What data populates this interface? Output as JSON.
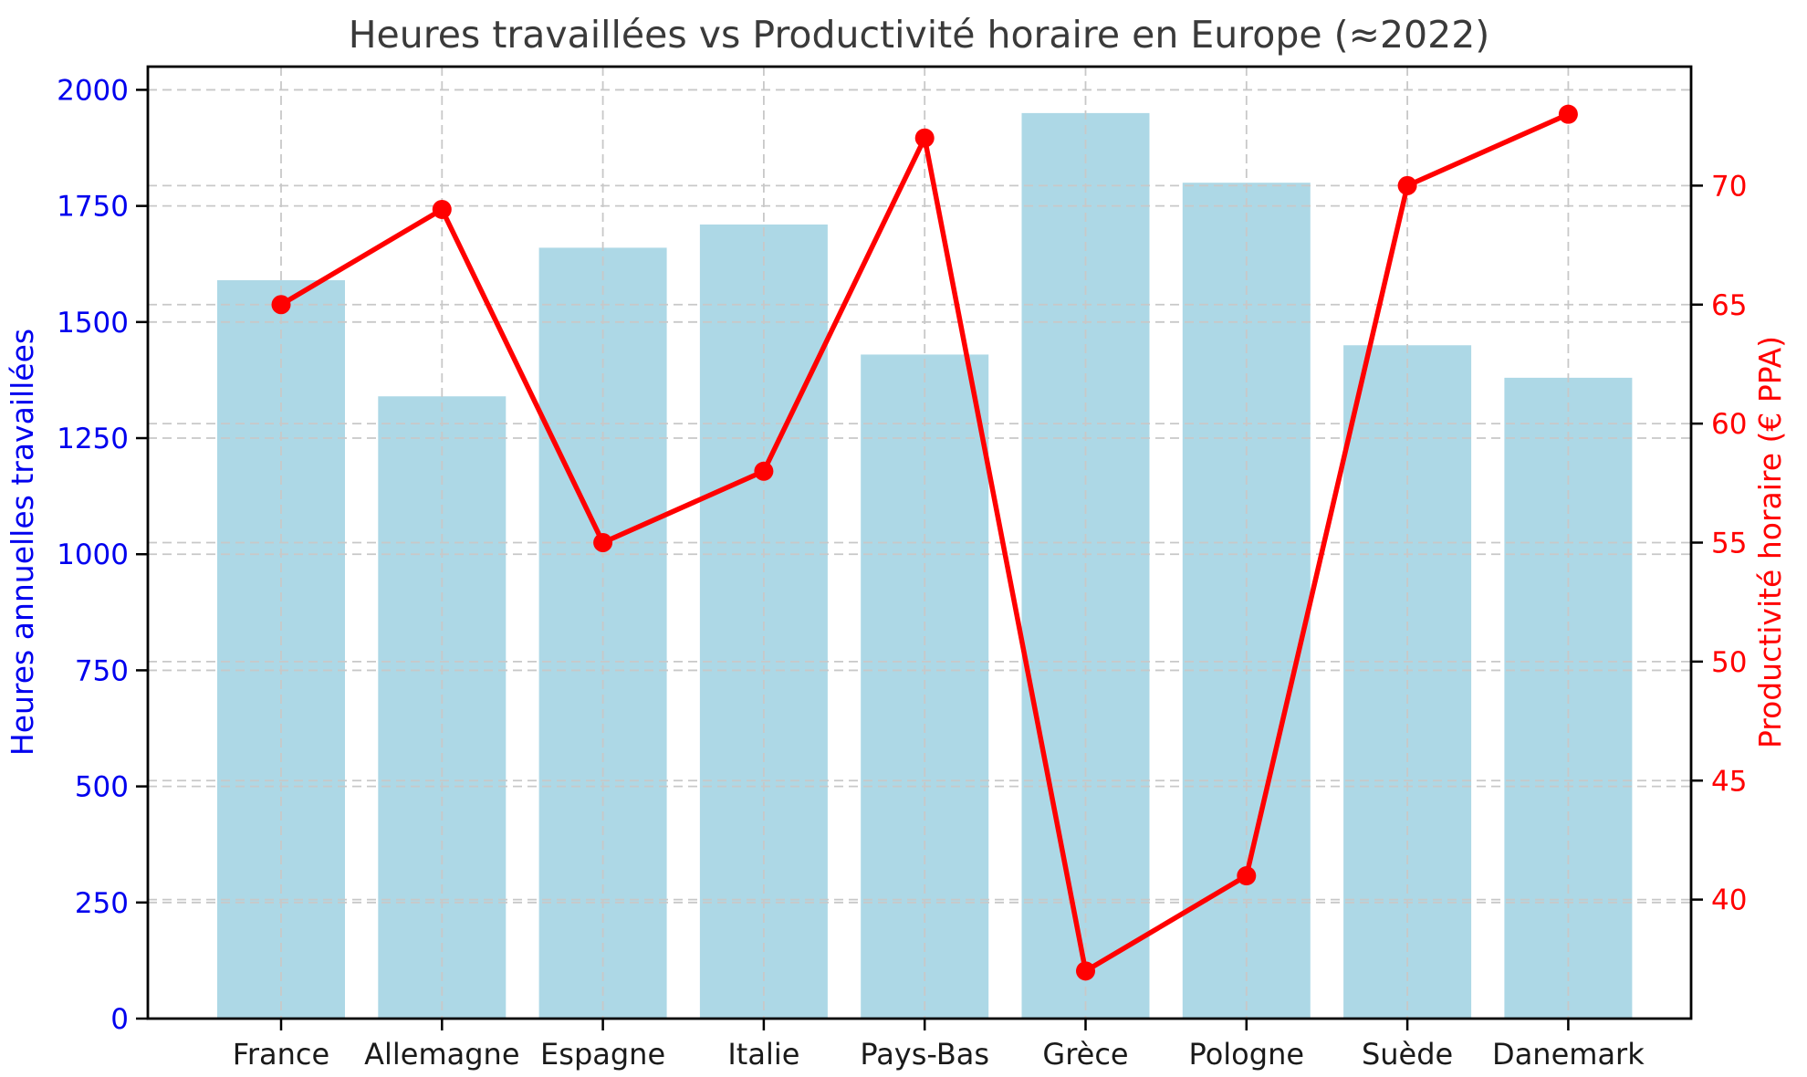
{
  "title": "Heures travaillées vs Productivité horaire en Europe (≈2022)",
  "chart_data": {
    "type": "combo",
    "categories": [
      "France",
      "Allemagne",
      "Espagne",
      "Italie",
      "Pays-Bas",
      "Grèce",
      "Pologne",
      "Suède",
      "Danemark"
    ],
    "series": [
      {
        "name": "Heures annuelles travaillées",
        "type": "bar",
        "axis": "left",
        "color": "#ADD8E6",
        "values": [
          1590,
          1340,
          1660,
          1710,
          1430,
          1950,
          1800,
          1450,
          1380
        ]
      },
      {
        "name": "Productivité horaire (€ PPA)",
        "type": "line",
        "axis": "right",
        "color": "#FF0000",
        "marker": "circle",
        "values": [
          65,
          69,
          55,
          58,
          72,
          37,
          41,
          70,
          73
        ]
      }
    ],
    "left_axis": {
      "label": "Heures annuelles travaillées",
      "color": "#0000EE",
      "ticks": [
        0,
        250,
        500,
        750,
        1000,
        1250,
        1500,
        1750,
        2000
      ],
      "ylim": [
        0,
        2050
      ]
    },
    "right_axis": {
      "label": "Productivité horaire (€ PPA)",
      "color": "#FF0000",
      "ticks": [
        40,
        45,
        50,
        55,
        60,
        65,
        70
      ],
      "ylim": [
        35,
        75
      ]
    },
    "x_axis": {
      "tick_labels": [
        "France",
        "Allemagne",
        "Espagne",
        "Italie",
        "Pays-Bas",
        "Grèce",
        "Pologne",
        "Suède",
        "Danemark"
      ],
      "color": "#1a1a1a"
    },
    "grid": {
      "show": true,
      "style": "dashed",
      "color": "#c8c8c8",
      "which": "both-axes-horizontal-plus-category-vertical"
    },
    "legend": "none",
    "title": "Heures travaillées vs Productivité horaire en Europe (≈2022)",
    "title_color": "#3a3a3a",
    "background": "#ffffff"
  }
}
